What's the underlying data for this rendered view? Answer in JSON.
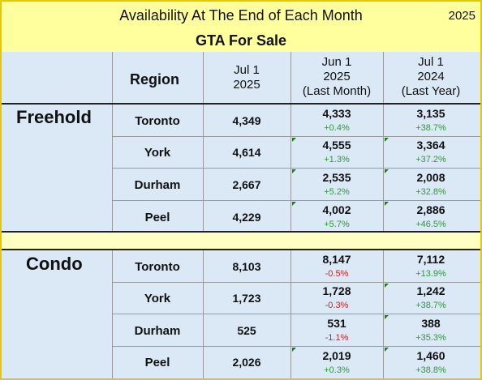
{
  "title": "Availability At The End of Each Month",
  "year": "2025",
  "subtitle": "GTA For Sale",
  "headers": {
    "region": "Region",
    "col1": [
      "Jul 1",
      "2025"
    ],
    "col2": [
      "Jun 1",
      "2025",
      "(Last Month)"
    ],
    "col3": [
      "Jul 1",
      "2024",
      "(Last Year)"
    ]
  },
  "sections": [
    {
      "label": "Freehold",
      "rows": [
        {
          "region": "Toronto",
          "jul2025": "4,349",
          "jun2025": "4,333",
          "jun_change": "+0.4%",
          "jul2024": "3,135",
          "yoy_change": "+38.7%"
        },
        {
          "region": "York",
          "jul2025": "4,614",
          "jun2025": "4,555",
          "jun_change": "+1.3%",
          "jul2024": "3,364",
          "yoy_change": "+37.2%"
        },
        {
          "region": "Durham",
          "jul2025": "2,667",
          "jun2025": "2,535",
          "jun_change": "+5.2%",
          "jul2024": "2,008",
          "yoy_change": "+32.8%"
        },
        {
          "region": "Peel",
          "jul2025": "4,229",
          "jun2025": "4,002",
          "jun_change": "+5.7%",
          "jul2024": "2,886",
          "yoy_change": "+46.5%"
        }
      ]
    },
    {
      "label": "Condo",
      "rows": [
        {
          "region": "Toronto",
          "jul2025": "8,103",
          "jun2025": "8,147",
          "jun_change": "-0.5%",
          "jul2024": "7,112",
          "yoy_change": "+13.9%"
        },
        {
          "region": "York",
          "jul2025": "1,723",
          "jun2025": "1,728",
          "jun_change": "-0.3%",
          "jul2024": "1,242",
          "yoy_change": "+38.7%"
        },
        {
          "region": "Durham",
          "jul2025": "525",
          "jun2025": "531",
          "jun_change": "-1.1%",
          "jul2024": "388",
          "yoy_change": "+35.3%"
        },
        {
          "region": "Peel",
          "jul2025": "2,026",
          "jun2025": "2,019",
          "jun_change": "+0.3%",
          "jul2024": "1,460",
          "yoy_change": "+38.8%"
        }
      ]
    }
  ],
  "colors": {
    "positive": "#2e9a3a",
    "negative": "#d21f1f",
    "header_bg": "#ffff9e",
    "table_bg": "#dbe8f5",
    "border": "#e6c800"
  }
}
